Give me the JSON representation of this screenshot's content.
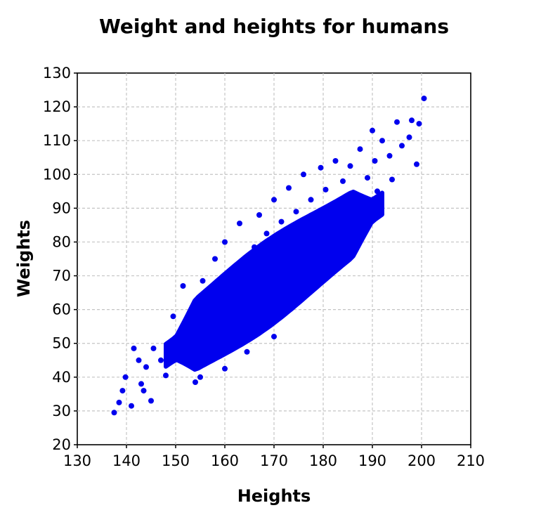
{
  "chart_data": {
    "type": "scatter",
    "title": "Weight and heights for humans",
    "xlabel": "Heights",
    "ylabel": "Weights",
    "xlim": [
      130,
      210
    ],
    "ylim": [
      20,
      130
    ],
    "xticks": [
      "130",
      "140",
      "150",
      "160",
      "170",
      "180",
      "190",
      "200",
      "210"
    ],
    "yticks": [
      "20",
      "30",
      "40",
      "50",
      "60",
      "70",
      "80",
      "90",
      "100",
      "110",
      "120",
      "130"
    ],
    "grid": true,
    "point_color": "#0000ee",
    "series": [
      {
        "points": [
          [
            137.5,
            29.5
          ],
          [
            138.5,
            32.5
          ],
          [
            139.2,
            36.0
          ],
          [
            139.8,
            40.0
          ],
          [
            141.0,
            31.5
          ],
          [
            141.5,
            48.5
          ],
          [
            142.5,
            45.0
          ],
          [
            143.0,
            38.0
          ],
          [
            143.5,
            36.0
          ],
          [
            144.0,
            43.0
          ],
          [
            145.0,
            33.0
          ],
          [
            145.5,
            48.5
          ],
          [
            147.0,
            45.0
          ],
          [
            148.0,
            40.5
          ],
          [
            149.5,
            58.0
          ],
          [
            151.0,
            52.0
          ],
          [
            151.5,
            67.0
          ],
          [
            152.5,
            54.0
          ],
          [
            154.0,
            38.5
          ],
          [
            154.5,
            61.0
          ],
          [
            155.0,
            40.0
          ],
          [
            155.5,
            68.5
          ],
          [
            156.0,
            57.0
          ],
          [
            157.0,
            64.0
          ],
          [
            157.5,
            48.0
          ],
          [
            158.0,
            75.0
          ],
          [
            158.5,
            53.0
          ],
          [
            159.5,
            60.5
          ],
          [
            160.0,
            42.5
          ],
          [
            160.0,
            80.0
          ],
          [
            160.5,
            66.5
          ],
          [
            161.5,
            58.0
          ],
          [
            162.0,
            70.0
          ],
          [
            162.5,
            54.5
          ],
          [
            163.0,
            85.5
          ],
          [
            163.5,
            62.5
          ],
          [
            164.0,
            73.0
          ],
          [
            164.5,
            47.5
          ],
          [
            165.5,
            67.5
          ],
          [
            166.0,
            78.5
          ],
          [
            166.5,
            58.5
          ],
          [
            167.0,
            88.0
          ],
          [
            167.5,
            71.5
          ],
          [
            168.0,
            65.0
          ],
          [
            168.5,
            82.5
          ],
          [
            169.5,
            76.0
          ],
          [
            170.0,
            52.0
          ],
          [
            170.0,
            92.5
          ],
          [
            171.0,
            69.5
          ],
          [
            171.5,
            86.0
          ],
          [
            172.0,
            63.0
          ],
          [
            172.5,
            79.0
          ],
          [
            173.0,
            96.0
          ],
          [
            173.5,
            74.0
          ],
          [
            174.5,
            89.0
          ],
          [
            175.0,
            67.0
          ],
          [
            175.5,
            83.0
          ],
          [
            176.0,
            100.0
          ],
          [
            177.0,
            78.0
          ],
          [
            177.5,
            92.5
          ],
          [
            178.0,
            71.5
          ],
          [
            178.5,
            87.0
          ],
          [
            179.5,
            102.0
          ],
          [
            180.0,
            81.0
          ],
          [
            180.5,
            95.5
          ],
          [
            181.5,
            76.5
          ],
          [
            182.0,
            90.0
          ],
          [
            182.5,
            104.0
          ],
          [
            183.5,
            85.0
          ],
          [
            184.0,
            98.0
          ],
          [
            185.0,
            82.5
          ],
          [
            185.5,
            102.5
          ],
          [
            186.5,
            93.0
          ],
          [
            187.5,
            107.5
          ],
          [
            188.0,
            88.0
          ],
          [
            189.0,
            99.0
          ],
          [
            190.0,
            113.0
          ],
          [
            190.5,
            104.0
          ],
          [
            191.0,
            95.0
          ],
          [
            192.0,
            110.0
          ],
          [
            193.5,
            105.5
          ],
          [
            194.0,
            98.5
          ],
          [
            195.0,
            115.5
          ],
          [
            196.0,
            108.5
          ],
          [
            197.5,
            111.0
          ],
          [
            198.0,
            116.0
          ],
          [
            199.0,
            103.0
          ],
          [
            199.5,
            115.0
          ],
          [
            200.5,
            122.5
          ]
        ]
      }
    ]
  }
}
